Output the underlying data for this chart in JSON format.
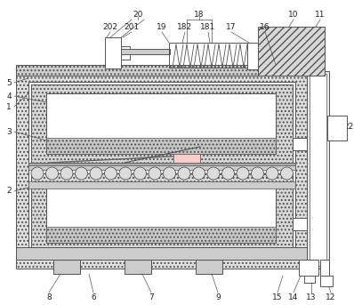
{
  "lc": "#555555",
  "lw": 0.7,
  "hatch_dot": "....",
  "hatch_slash": "////",
  "fc_gray": "#cccccc",
  "fc_light": "#e8e8e8",
  "fc_white": "#ffffff",
  "fc_mid": "#bbbbbb"
}
